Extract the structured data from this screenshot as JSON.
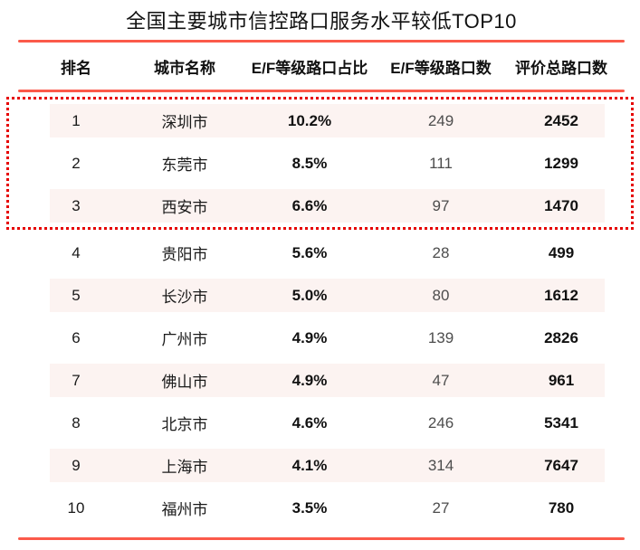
{
  "title": "全国主要城市信控路口服务水平较低TOP10",
  "colors": {
    "accent_line": "#fb5a4a",
    "highlight_border": "#e60000",
    "stripe_background": "#fcf3f1",
    "count_text": "#4d4d4d"
  },
  "table": {
    "headers": [
      "排名",
      "城市名称",
      "E/F等级路口占比",
      "E/F等级路口数",
      "评价总路口数"
    ],
    "rows": [
      {
        "rank": "1",
        "city": "深圳市",
        "pct": "10.2%",
        "count": "249",
        "total": "2452"
      },
      {
        "rank": "2",
        "city": "东莞市",
        "pct": "8.5%",
        "count": "111",
        "total": "1299"
      },
      {
        "rank": "3",
        "city": "西安市",
        "pct": "6.6%",
        "count": "97",
        "total": "1470"
      },
      {
        "rank": "4",
        "city": "贵阳市",
        "pct": "5.6%",
        "count": "28",
        "total": "499"
      },
      {
        "rank": "5",
        "city": "长沙市",
        "pct": "5.0%",
        "count": "80",
        "total": "1612"
      },
      {
        "rank": "6",
        "city": "广州市",
        "pct": "4.9%",
        "count": "139",
        "total": "2826"
      },
      {
        "rank": "7",
        "city": "佛山市",
        "pct": "4.9%",
        "count": "47",
        "total": "961"
      },
      {
        "rank": "8",
        "city": "北京市",
        "pct": "4.6%",
        "count": "246",
        "total": "5341"
      },
      {
        "rank": "9",
        "city": "上海市",
        "pct": "4.1%",
        "count": "314",
        "total": "7647"
      },
      {
        "rank": "10",
        "city": "福州市",
        "pct": "3.5%",
        "count": "27",
        "total": "780"
      }
    ],
    "highlighted_rank_range": "1-3"
  },
  "chart_data": {
    "type": "table",
    "title": "全国主要城市信控路口服务水平较低TOP10",
    "columns": [
      "排名",
      "城市名称",
      "E/F等级路口占比",
      "E/F等级路口数",
      "评价总路口数"
    ],
    "categories": [
      "深圳市",
      "东莞市",
      "西安市",
      "贵阳市",
      "长沙市",
      "广州市",
      "佛山市",
      "北京市",
      "上海市",
      "福州市"
    ],
    "series": [
      {
        "name": "E/F等级路口占比(%)",
        "values": [
          10.2,
          8.5,
          6.6,
          5.6,
          5.0,
          4.9,
          4.9,
          4.6,
          4.1,
          3.5
        ]
      },
      {
        "name": "E/F等级路口数",
        "values": [
          249,
          111,
          97,
          28,
          80,
          139,
          47,
          246,
          314,
          27
        ]
      },
      {
        "name": "评价总路口数",
        "values": [
          2452,
          1299,
          1470,
          499,
          1612,
          2826,
          961,
          5341,
          7647,
          780
        ]
      }
    ],
    "annotations": [
      "前三名(排名1-3)以红色虚线框突出显示"
    ]
  }
}
